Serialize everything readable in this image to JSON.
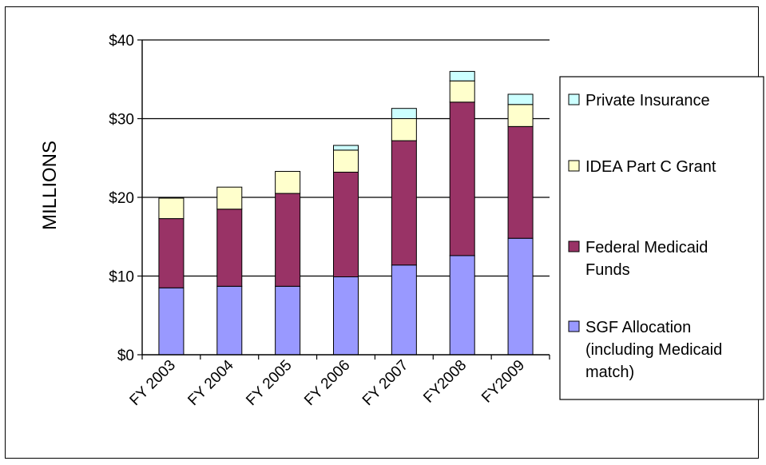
{
  "chart_data": {
    "type": "bar",
    "stacked": true,
    "categories": [
      "FY 2003",
      "FY 2004",
      "FY 2005",
      "FY 2006",
      "FY 2007",
      "FY2008",
      "FY2009"
    ],
    "ylabel": "MILLIONS",
    "ylim": [
      0,
      40
    ],
    "yticks": [
      "$0",
      "$10",
      "$20",
      "$30",
      "$40"
    ],
    "grid": true,
    "legend_position": "right",
    "series": [
      {
        "name": "SGF Allocation (including Medicaid match)",
        "legend_lines": [
          "SGF Allocation",
          "(including Medicaid",
          "match)"
        ],
        "color": "#9999ff",
        "values": [
          8.5,
          8.7,
          8.7,
          9.9,
          11.4,
          12.6,
          14.8
        ]
      },
      {
        "name": "Federal Medicaid Funds",
        "legend_lines": [
          "Federal Medicaid",
          "Funds"
        ],
        "color": "#993366",
        "values": [
          8.8,
          9.8,
          11.8,
          13.3,
          15.8,
          19.5,
          14.2
        ]
      },
      {
        "name": "IDEA Part C Grant",
        "legend_lines": [
          "IDEA Part C Grant"
        ],
        "color": "#ffffcc",
        "values": [
          2.6,
          2.8,
          2.8,
          2.8,
          2.8,
          2.7,
          2.8
        ]
      },
      {
        "name": "Private Insurance",
        "legend_lines": [
          "Private Insurance"
        ],
        "color": "#ccffff",
        "values": [
          0,
          0,
          0,
          0.6,
          1.3,
          1.2,
          1.3
        ]
      }
    ]
  }
}
